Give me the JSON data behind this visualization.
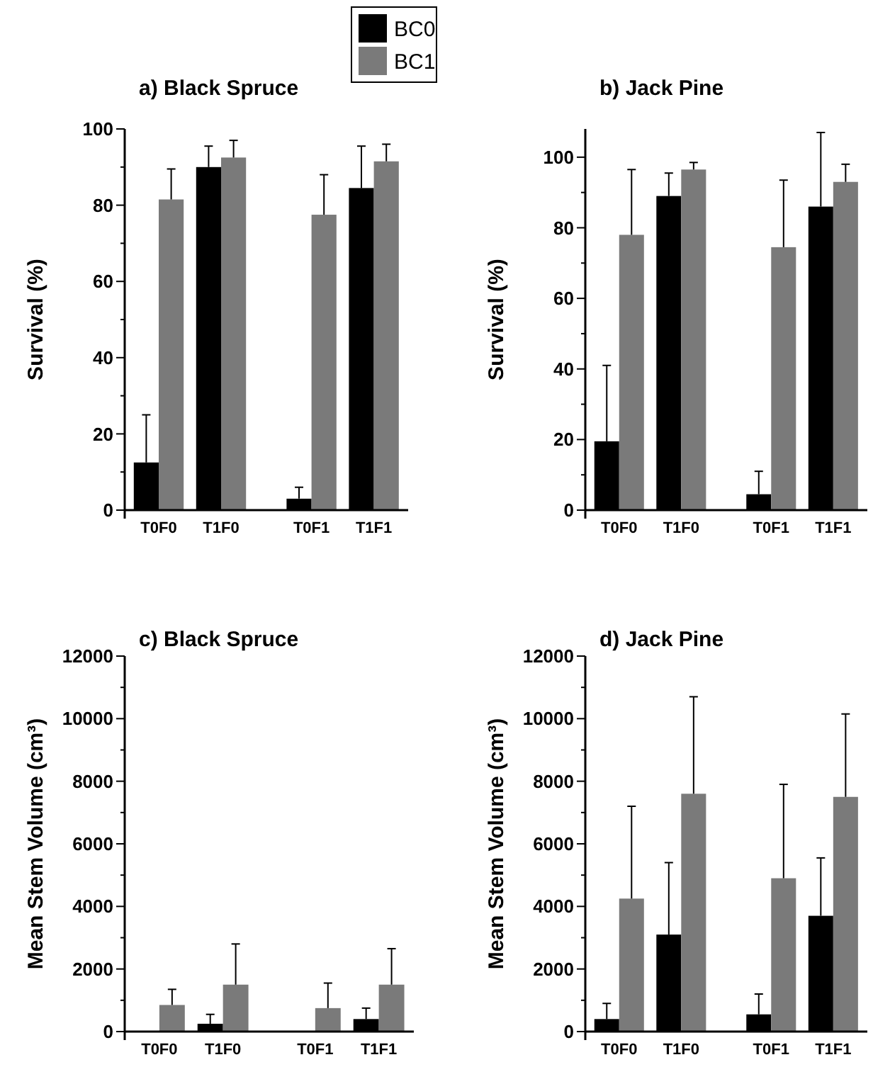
{
  "chart_data": [
    {
      "type": "bar",
      "title": "a) Black Spruce",
      "ylabel": "Survival (%)",
      "categories": [
        "T0F0",
        "T1F0",
        "T0F1",
        "T1F1"
      ],
      "legend": "top right",
      "series": [
        {
          "name": "BC0",
          "color": "#000000",
          "values": [
            12.5,
            90,
            3,
            84.5
          ],
          "errors": [
            [
              12.5,
              25
            ],
            [
              90,
              95.5
            ],
            [
              3,
              6
            ],
            [
              84.5,
              95.5
            ]
          ]
        },
        {
          "name": "BC1",
          "color": "#7a7a7a",
          "values": [
            81.5,
            92.5,
            77.5,
            91.5
          ],
          "errors": [
            [
              81.5,
              89.5
            ],
            [
              92.5,
              97
            ],
            [
              77.5,
              88
            ],
            [
              91.5,
              96
            ]
          ]
        }
      ],
      "ylim": [
        0,
        100
      ],
      "yticks": [
        0,
        {
          "value": 10,
          "label": null
        },
        20,
        {
          "value": 30,
          "label": null
        },
        40,
        {
          "value": 50,
          "label": null
        },
        60,
        {
          "value": 70,
          "label": null
        },
        80,
        {
          "value": 90,
          "label": null
        },
        100
      ]
    },
    {
      "type": "bar",
      "title": "b) Jack Pine",
      "ylabel": "Survival (%)",
      "categories": [
        "T0F0",
        "T1F0",
        "T0F1",
        "T1F1"
      ],
      "series": [
        {
          "color": "#000000",
          "values": [
            19.5,
            89,
            4.5,
            86
          ],
          "errors": [
            [
              19.5,
              41
            ],
            [
              89,
              95.5
            ],
            [
              4.5,
              11
            ],
            [
              86,
              107
            ]
          ]
        },
        {
          "color": "#7a7a7a",
          "values": [
            78,
            96.5,
            74.5,
            93
          ],
          "errors": [
            [
              78,
              96.5
            ],
            [
              96.5,
              98.5
            ],
            [
              74.5,
              93.5
            ],
            [
              93,
              98
            ]
          ]
        }
      ],
      "ylim": [
        0,
        108
      ],
      "yticks": [
        0,
        {
          "value": 10,
          "label": null
        },
        20,
        {
          "value": 30,
          "label": null
        },
        40,
        {
          "value": 50,
          "label": null
        },
        60,
        {
          "value": 70,
          "label": null
        },
        80,
        {
          "value": 90,
          "label": null
        },
        100
      ]
    },
    {
      "type": "bar",
      "title": "c) Black Spruce",
      "ylabel": "Mean Stem Volume (cm³)",
      "categories": [
        "T0F0",
        "T1F0",
        "T0F1",
        "T1F1"
      ],
      "series": [
        {
          "color": "#000000",
          "values": [
            20,
            250,
            20,
            400
          ],
          "errors": [
            null,
            [
              250,
              550
            ],
            null,
            [
              400,
              750
            ]
          ]
        },
        {
          "color": "#7a7a7a",
          "values": [
            850,
            1500,
            750,
            1500
          ],
          "errors": [
            [
              850,
              1350
            ],
            [
              1500,
              2800
            ],
            [
              750,
              1550
            ],
            [
              1500,
              2650
            ]
          ]
        }
      ],
      "ylim": [
        0,
        12000
      ],
      "yticks": [
        0,
        {
          "value": 1000,
          "label": null
        },
        2000,
        {
          "value": 3000,
          "label": null
        },
        4000,
        {
          "value": 5000,
          "label": null
        },
        6000,
        {
          "value": 7000,
          "label": null
        },
        8000,
        {
          "value": 9000,
          "label": null
        },
        10000,
        {
          "value": 11000,
          "label": null
        },
        12000
      ]
    },
    {
      "type": "bar",
      "title": "d) Jack Pine",
      "ylabel": "Mean Stem Volume (cm³)",
      "categories": [
        "T0F0",
        "T1F0",
        "T0F1",
        "T1F1"
      ],
      "series": [
        {
          "color": "#000000",
          "values": [
            400,
            3100,
            550,
            3700
          ],
          "errors": [
            [
              400,
              900
            ],
            [
              3100,
              5400
            ],
            [
              550,
              1200
            ],
            [
              3700,
              5550
            ]
          ]
        },
        {
          "color": "#7a7a7a",
          "values": [
            4250,
            7600,
            4900,
            7500
          ],
          "errors": [
            [
              4250,
              7200
            ],
            [
              7600,
              10700
            ],
            [
              4900,
              7900
            ],
            [
              7500,
              10150
            ]
          ]
        }
      ],
      "ylim": [
        0,
        12000
      ],
      "yticks": [
        0,
        {
          "value": 1000,
          "label": null
        },
        2000,
        {
          "value": 3000,
          "label": null
        },
        4000,
        {
          "value": 5000,
          "label": null
        },
        6000,
        {
          "value": 7000,
          "label": null
        },
        8000,
        {
          "value": 9000,
          "label": null
        },
        10000,
        {
          "value": 11000,
          "label": null
        },
        12000
      ]
    }
  ]
}
